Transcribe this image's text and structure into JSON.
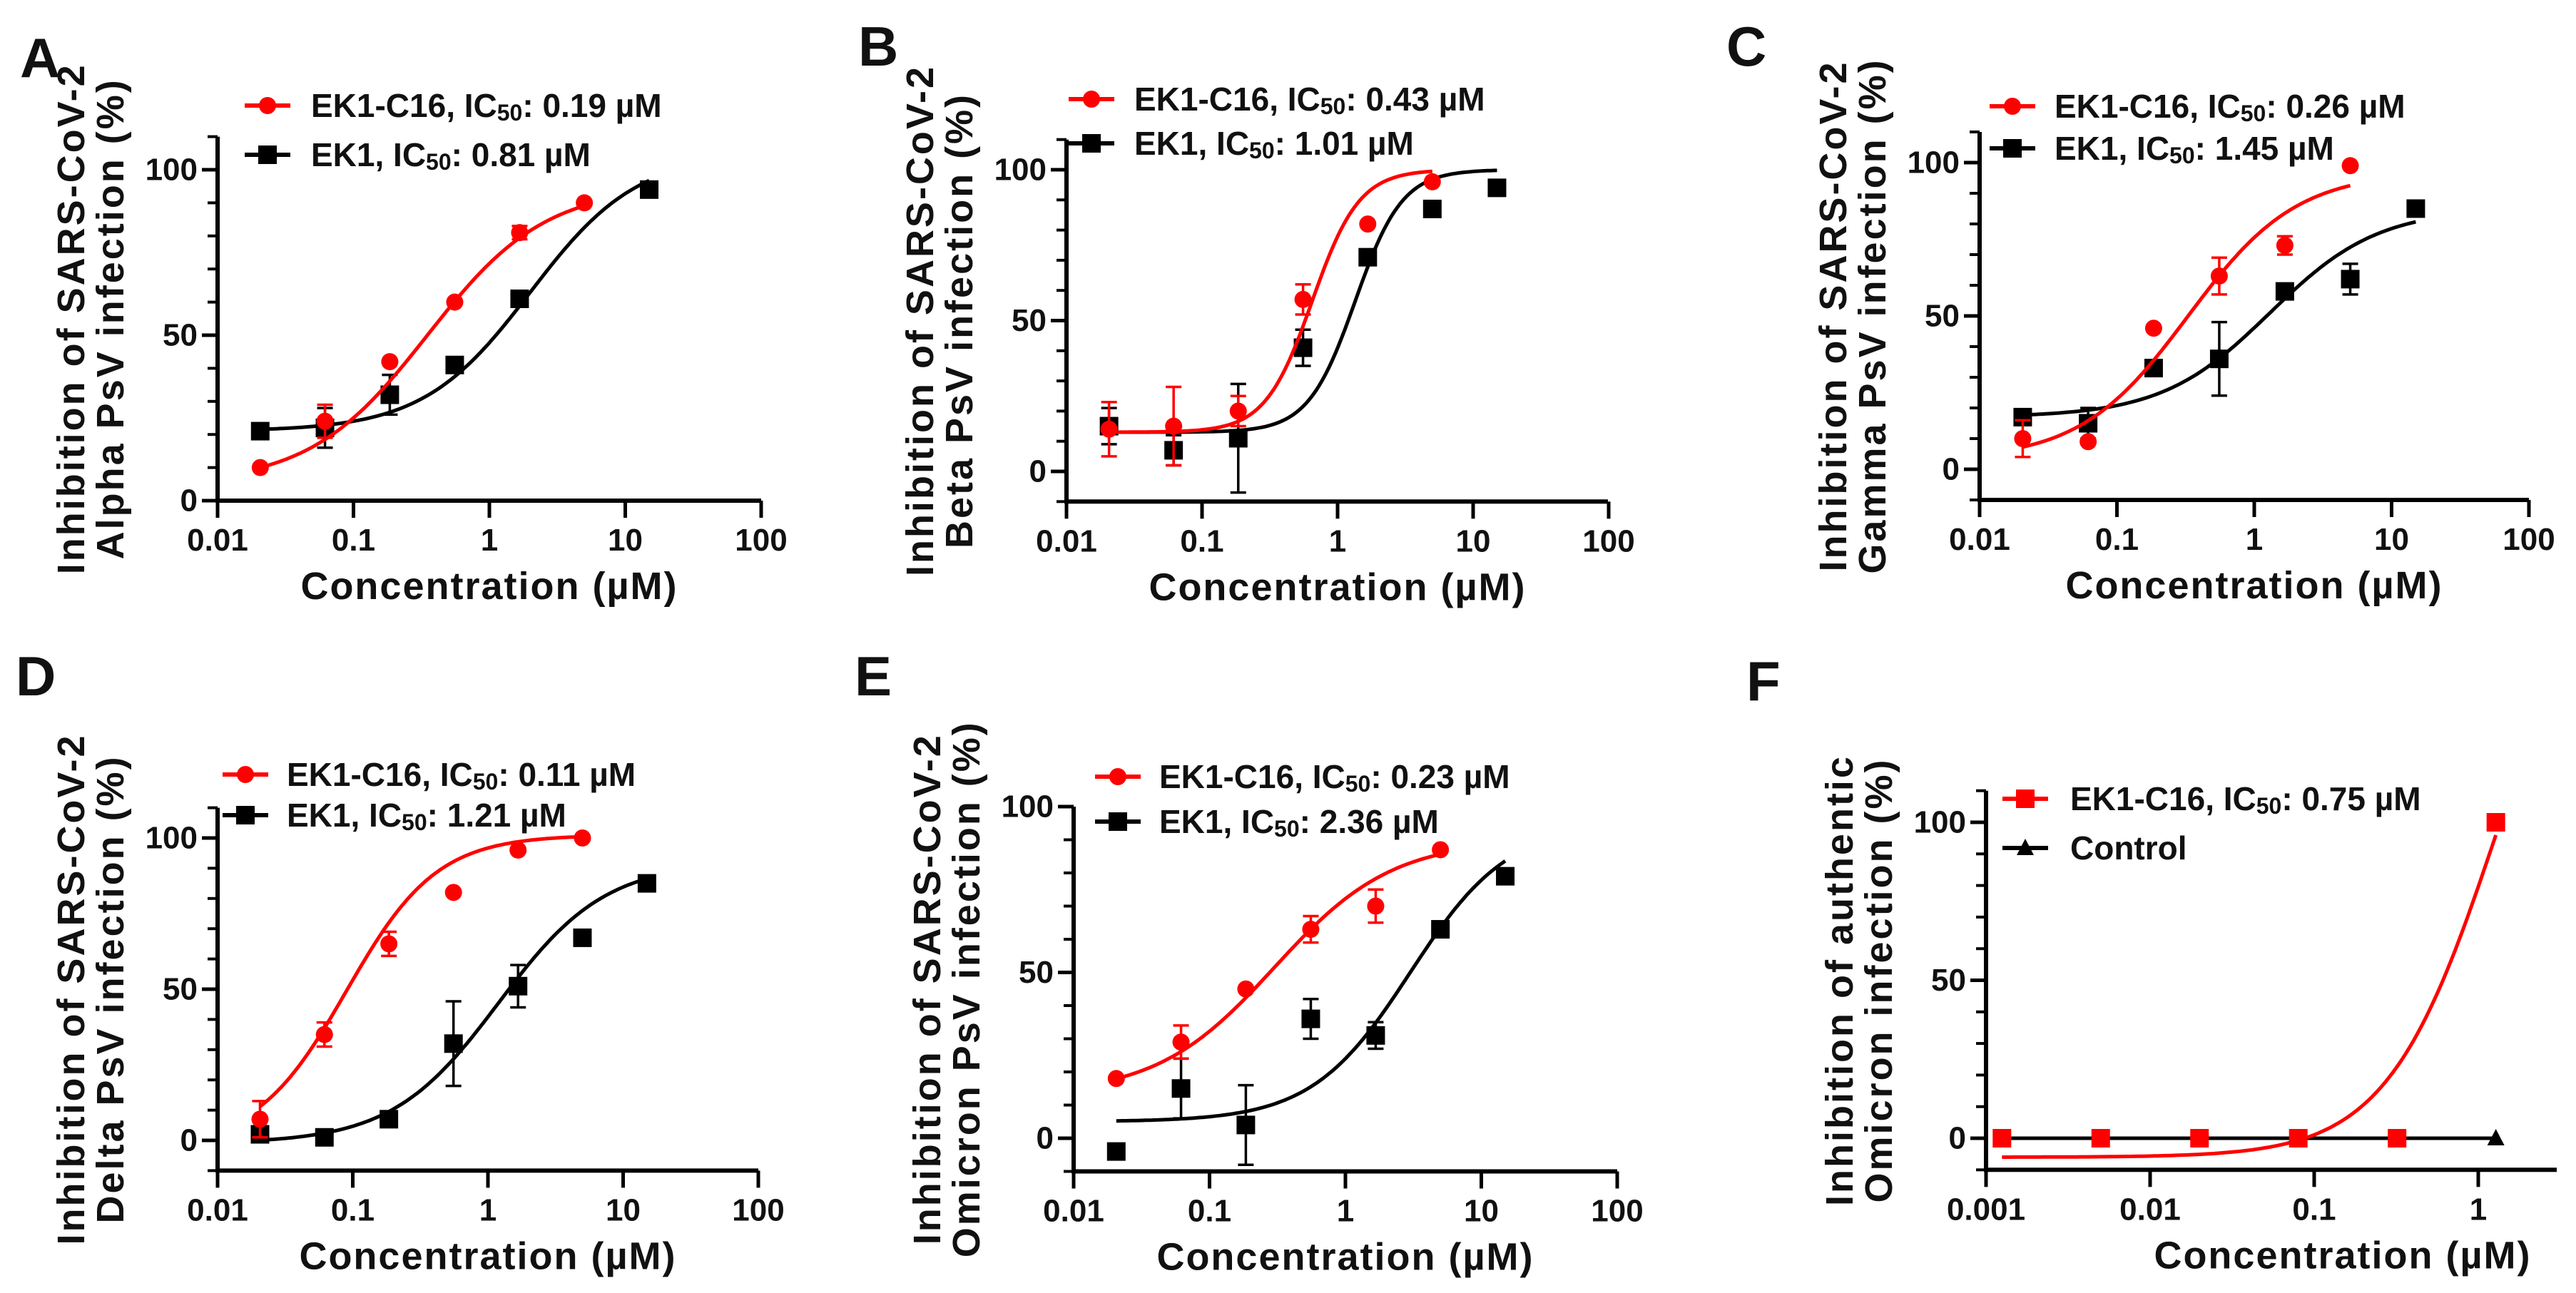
{
  "colors": {
    "red": "#ff0000",
    "black": "#000000"
  },
  "chart_data": [
    {
      "label": "A",
      "type": "line",
      "x_scale": "log",
      "xlabel": "Concentration (µM)",
      "ylabel": [
        "Inhibition of SARS-CoV-2",
        "Alpha PsV infection (%)"
      ],
      "xlim": [
        0.01,
        100
      ],
      "ylim": [
        0,
        110
      ],
      "xticks": [
        "0.01",
        "0.1",
        "1",
        "10",
        "100"
      ],
      "yticks": [
        "0",
        "50",
        "100"
      ],
      "series": [
        {
          "name": "EK1",
          "legend": [
            "EK1, IC",
            "50",
            ":  0.81 µM"
          ],
          "color": "#000000",
          "marker": "square",
          "x": [
            0.0206,
            0.0617,
            0.185,
            0.556,
            1.67,
            15
          ],
          "y": [
            21,
            22,
            32,
            41,
            61,
            94
          ],
          "err": [
            0,
            6,
            6,
            0,
            0,
            0
          ],
          "fit": {
            "bottom": 21,
            "top": 105,
            "ic50": 2,
            "hill": 1.1
          }
        },
        {
          "name": "EK1-C16",
          "legend": [
            "EK1-C16, IC",
            "50",
            ":  0.19 µM"
          ],
          "color": "#ff0000",
          "marker": "circle",
          "x": [
            0.0206,
            0.0617,
            0.185,
            0.556,
            1.67,
            5
          ],
          "y": [
            10,
            24,
            42,
            60,
            81,
            90
          ],
          "err": [
            0,
            5,
            0,
            0,
            2,
            0
          ],
          "fit": {
            "bottom": 5,
            "top": 95,
            "ic50": 0.35,
            "hill": 1.0
          }
        }
      ]
    },
    {
      "label": "B",
      "type": "line",
      "x_scale": "log",
      "xlabel": "Concentration (µM)",
      "ylabel": [
        "Inhibition of SARS-CoV-2",
        "Beta PsV infection (%)"
      ],
      "xlim": [
        0.01,
        100
      ],
      "ylim": [
        -10,
        110
      ],
      "xticks": [
        "0.01",
        "0.1",
        "1",
        "10",
        "100"
      ],
      "yticks": [
        "0",
        "50",
        "100"
      ],
      "series": [
        {
          "name": "EK1",
          "legend": [
            "EK1, IC",
            "50",
            ":  1.01 µM"
          ],
          "color": "#000000",
          "marker": "square",
          "x": [
            0.0206,
            0.0617,
            0.185,
            0.556,
            1.67,
            5,
            15
          ],
          "y": [
            15,
            7,
            11,
            41,
            71,
            87,
            94
          ],
          "err": [
            6,
            5,
            18,
            6,
            0,
            0,
            0
          ],
          "fit": {
            "bottom": 13,
            "top": 100,
            "ic50": 1.35,
            "hill": 2.5
          }
        },
        {
          "name": "EK1-C16",
          "legend": [
            "EK1-C16, IC",
            "50",
            ":  0.43 µM"
          ],
          "color": "#ff0000",
          "marker": "circle",
          "x": [
            0.0206,
            0.0617,
            0.185,
            0.556,
            1.67,
            5
          ],
          "y": [
            14,
            15,
            20,
            57,
            82,
            96
          ],
          "err": [
            9,
            13,
            5,
            5,
            0,
            0
          ],
          "fit": {
            "bottom": 13,
            "top": 100,
            "ic50": 0.65,
            "hill": 2.5
          }
        }
      ]
    },
    {
      "label": "C",
      "type": "line",
      "x_scale": "log",
      "xlabel": "Concentration (µM)",
      "ylabel": [
        "Inhibition of SARS-CoV-2",
        "Gamma PsV infection (%)"
      ],
      "xlim": [
        0.01,
        100
      ],
      "ylim": [
        -10,
        110
      ],
      "xticks": [
        "0.01",
        "0.1",
        "1",
        "10",
        "100"
      ],
      "yticks": [
        "0",
        "50",
        "100"
      ],
      "series": [
        {
          "name": "EK1",
          "legend": [
            "EK1, IC",
            "50",
            ":  1.45 µM"
          ],
          "color": "#000000",
          "marker": "square",
          "x": [
            0.0206,
            0.0617,
            0.185,
            0.556,
            1.67,
            5,
            15
          ],
          "y": [
            17,
            15,
            33,
            36,
            58,
            62,
            85
          ],
          "err": [
            0,
            5,
            0,
            12,
            2,
            5,
            0
          ],
          "fit": {
            "bottom": 17,
            "top": 85,
            "ic50": 1.3,
            "hill": 1.1
          }
        },
        {
          "name": "EK1-C16",
          "legend": [
            "EK1-C16, IC",
            "50",
            ":  0.26 µM"
          ],
          "color": "#ff0000",
          "marker": "circle",
          "x": [
            0.0206,
            0.0617,
            0.185,
            0.556,
            1.67,
            5
          ],
          "y": [
            10,
            9,
            46,
            63,
            73,
            99
          ],
          "err": [
            6,
            0,
            0,
            6,
            3,
            0
          ],
          "fit": {
            "bottom": 3,
            "top": 97,
            "ic50": 0.33,
            "hill": 1.1
          }
        }
      ]
    },
    {
      "label": "D",
      "type": "line",
      "x_scale": "log",
      "xlabel": "Concentration (µM)",
      "ylabel": [
        "Inhibition of SARS-CoV-2",
        "Delta PsV infection (%)"
      ],
      "xlim": [
        0.01,
        100
      ],
      "ylim": [
        -10,
        110
      ],
      "xticks": [
        "0.01",
        "0.1",
        "1",
        "10",
        "100"
      ],
      "yticks": [
        "0",
        "50",
        "100"
      ],
      "series": [
        {
          "name": "EK1",
          "legend": [
            "EK1, IC",
            "50",
            ":  1.21 µM"
          ],
          "color": "#000000",
          "marker": "square",
          "x": [
            0.0206,
            0.0617,
            0.185,
            0.556,
            1.67,
            5,
            15
          ],
          "y": [
            2,
            1,
            7,
            32,
            51,
            67,
            85
          ],
          "err": [
            0,
            0,
            0,
            14,
            7,
            0,
            0
          ],
          "fit": {
            "bottom": -1,
            "top": 92,
            "ic50": 1.2,
            "hill": 1.1
          }
        },
        {
          "name": "EK1-C16",
          "legend": [
            "EK1-C16, IC",
            "50",
            ":  0.11 µM"
          ],
          "color": "#ff0000",
          "marker": "circle",
          "x": [
            0.0206,
            0.0617,
            0.185,
            0.556,
            1.67,
            5
          ],
          "y": [
            7,
            35,
            65,
            82,
            96,
            100
          ],
          "err": [
            6,
            4,
            4,
            0,
            0,
            0
          ],
          "fit": {
            "bottom": -2,
            "top": 101,
            "ic50": 0.09,
            "hill": 1.3
          }
        }
      ]
    },
    {
      "label": "E",
      "type": "line",
      "x_scale": "log",
      "xlabel": "Concentration (µM)",
      "ylabel": [
        "Inhibition of SARS-CoV-2",
        "Omicron PsV infection (%)"
      ],
      "xlim": [
        0.01,
        100
      ],
      "ylim": [
        -10,
        100
      ],
      "xticks": [
        "0.01",
        "0.1",
        "1",
        "10",
        "100"
      ],
      "yticks": [
        "0",
        "50",
        "100"
      ],
      "series": [
        {
          "name": "EK1",
          "legend": [
            "EK1, IC",
            "50",
            ":  2.36 µM"
          ],
          "color": "#000000",
          "marker": "square",
          "x": [
            0.0206,
            0.0617,
            0.185,
            0.556,
            1.67,
            5,
            15
          ],
          "y": [
            -4,
            15,
            4,
            36,
            31,
            63,
            79
          ],
          "err": [
            0,
            9,
            12,
            6,
            4,
            0,
            0
          ],
          "fit": {
            "bottom": 5,
            "top": 95,
            "ic50": 3,
            "hill": 1.2
          }
        },
        {
          "name": "EK1-C16",
          "legend": [
            "EK1-C16, IC",
            "50",
            ":  0.23 µM"
          ],
          "color": "#ff0000",
          "marker": "circle",
          "x": [
            0.0206,
            0.0617,
            0.185,
            0.556,
            1.67,
            5
          ],
          "y": [
            18,
            29,
            45,
            63,
            70,
            87
          ],
          "err": [
            0,
            5,
            0,
            4,
            5,
            0
          ],
          "fit": {
            "bottom": 13,
            "top": 90,
            "ic50": 0.3,
            "hill": 1.0
          }
        }
      ]
    },
    {
      "label": "F",
      "type": "line",
      "x_scale": "log",
      "xlabel": "Concentration (µM)",
      "ylabel": [
        "Inhibition of authentic",
        "Omicron infection (%)"
      ],
      "xlim": [
        0.001,
        4
      ],
      "ylim": [
        -10,
        110
      ],
      "xticks": [
        "0.001",
        "0.01",
        "0.1",
        "1"
      ],
      "yticks": [
        "0",
        "50",
        "100"
      ],
      "series": [
        {
          "name": "Control",
          "legend": [
            "Control",
            "",
            ""
          ],
          "color": "#000000",
          "marker": "triangle",
          "x": [
            0.00125,
            0.005,
            0.02,
            0.08,
            0.32,
            1.28
          ],
          "y": [
            0,
            0,
            0,
            0,
            0,
            0
          ],
          "err": [
            0,
            0,
            0,
            0,
            0,
            0
          ],
          "fit": {
            "bottom": 0,
            "top": 0,
            "ic50": 1,
            "hill": 1
          }
        },
        {
          "name": "EK1-C16",
          "legend": [
            "EK1-C16, IC",
            "50",
            ":  0.75 µM"
          ],
          "color": "#ff0000",
          "marker": "square",
          "x": [
            0.00125,
            0.005,
            0.02,
            0.08,
            0.32,
            1.28
          ],
          "y": [
            0,
            0,
            0,
            0,
            0,
            100
          ],
          "err": [
            0,
            0,
            0,
            0,
            0,
            0
          ],
          "fit": {
            "bottom": -6,
            "top": 200,
            "ic50": 1.3,
            "hill": 1.3
          }
        }
      ]
    }
  ]
}
